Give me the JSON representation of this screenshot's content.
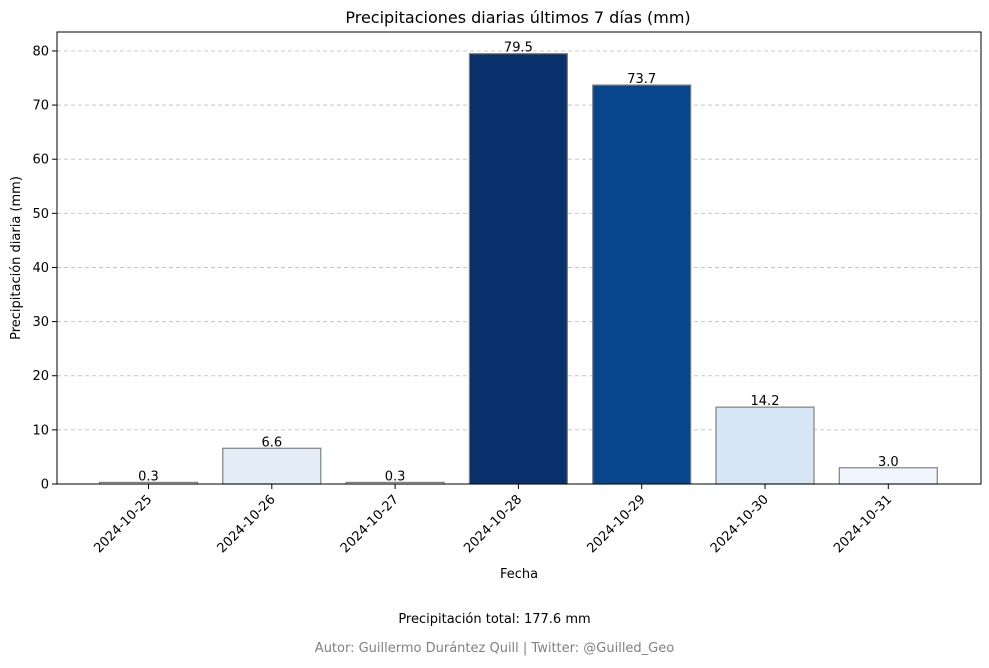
{
  "chart_data": {
    "type": "bar",
    "title": "Precipitaciones diarias últimos 7 días (mm)",
    "xlabel": "Fecha",
    "ylabel": "Precipitación diaria (mm)",
    "categories": [
      "2024-10-25",
      "2024-10-26",
      "2024-10-27",
      "2024-10-28",
      "2024-10-29",
      "2024-10-30",
      "2024-10-31"
    ],
    "values": [
      0.3,
      6.6,
      0.3,
      79.5,
      73.7,
      14.2,
      3.0
    ],
    "value_labels": [
      "0.3",
      "6.6",
      "0.3",
      "79.5",
      "73.7",
      "14.2",
      "3.0"
    ],
    "bar_colors": [
      "#f7fbff",
      "#e3eef9",
      "#f7fbff",
      "#08306b",
      "#08468b",
      "#d6e6f4",
      "#f0f6fd"
    ],
    "ylim": [
      0,
      83.5
    ],
    "yticks": [
      0,
      10,
      20,
      30,
      40,
      50,
      60,
      70,
      80
    ],
    "grid": true,
    "grid_axis": "y",
    "grid_style": "dashed"
  },
  "footer": {
    "total_label": "Precipitación total: 177.6 mm",
    "author": "Autor: Guillermo Durántez Quill | Twitter: @Guilled_Geo"
  },
  "colors": {
    "bar_edge": "#808080",
    "grid": "#c8c8c8",
    "footer_author": "#808080"
  }
}
